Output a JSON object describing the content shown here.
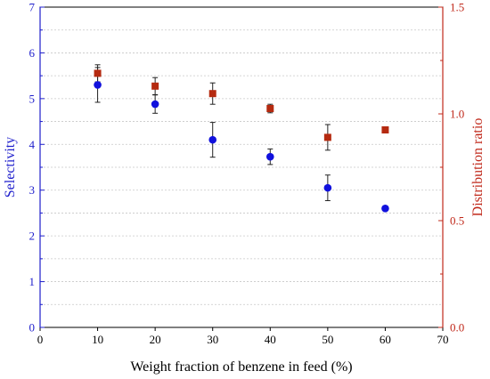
{
  "chart_data": {
    "type": "scatter",
    "x_axis": {
      "label": "Weight fraction of benzene in feed (%)",
      "range": [
        0,
        70
      ],
      "ticks": [
        "0",
        "10",
        "20",
        "30",
        "40",
        "50",
        "60",
        "70"
      ]
    },
    "y_axis_left": {
      "label": "Selectivity",
      "range": [
        0,
        7
      ],
      "ticks": [
        "0",
        "1",
        "2",
        "3",
        "4",
        "5",
        "6",
        "7"
      ],
      "color": "#1f1fcc"
    },
    "y_axis_right": {
      "label": "Distribution ratio",
      "range": [
        0,
        1.5
      ],
      "ticks": [
        "0.0",
        "0.5",
        "1.0",
        "1.5"
      ],
      "color": "#c0281a"
    },
    "grid": "dotted horizontal",
    "series": [
      {
        "axis": "left",
        "marker": "circle",
        "color": "#1111dd",
        "x": [
          10,
          20,
          30,
          40,
          50,
          60
        ],
        "y": [
          5.3,
          4.88,
          4.1,
          3.73,
          3.05,
          2.6
        ],
        "error": [
          0.38,
          0.2,
          0.38,
          0.17,
          0.28,
          0.0
        ]
      },
      {
        "axis": "right",
        "marker": "square",
        "color": "#b52a10",
        "x": [
          10,
          20,
          30,
          40,
          50,
          60
        ],
        "y": [
          1.19,
          1.13,
          1.095,
          1.025,
          0.89,
          0.925
        ],
        "error": [
          0.04,
          0.04,
          0.05,
          0.02,
          0.06,
          0.0
        ]
      }
    ]
  }
}
